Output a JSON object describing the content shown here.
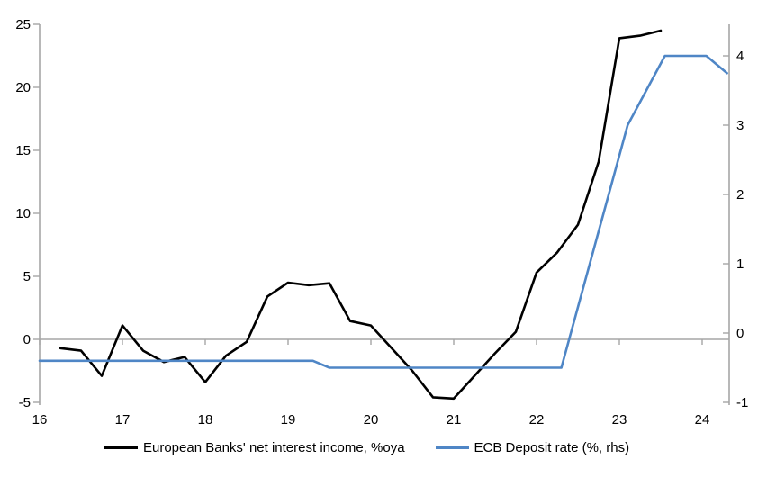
{
  "chart_data": {
    "type": "line",
    "title": "",
    "xlabel": "",
    "ylabel_left": "",
    "ylabel_right": "",
    "grid": "zero-line-only",
    "legend_position": "bottom",
    "x_axis": {
      "tick_values": [
        16,
        17,
        18,
        19,
        20,
        21,
        22,
        23,
        24
      ],
      "tick_labels": [
        "16",
        "17",
        "18",
        "19",
        "20",
        "21",
        "22",
        "23",
        "24"
      ],
      "range": [
        16,
        24.35
      ]
    },
    "left_axis": {
      "tick_values": [
        25,
        20,
        15,
        10,
        5,
        0,
        -5
      ],
      "tick_labels": [
        "25",
        "20",
        "15",
        "10",
        "5",
        "0",
        "-5"
      ],
      "range": [
        -5.2,
        25
      ]
    },
    "right_axis": {
      "tick_values": [
        4,
        3,
        2,
        1,
        0,
        -1
      ],
      "tick_labels": [
        "4",
        "3",
        "2",
        "1",
        "0",
        "-1"
      ],
      "range": [
        -1.04,
        4.45
      ]
    },
    "axis_color": "#A6A6A6",
    "text_color": "#000000",
    "series": [
      {
        "name": "European Banks' net interest income, %oya",
        "axis": "left",
        "color": "#000000",
        "x": [
          16.25,
          16.5,
          16.75,
          17.0,
          17.25,
          17.5,
          17.75,
          18.0,
          18.25,
          18.5,
          18.75,
          19.0,
          19.25,
          19.5,
          19.75,
          20.0,
          20.25,
          20.5,
          20.75,
          21.0,
          21.25,
          21.5,
          21.75,
          22.0,
          22.25,
          22.5,
          22.75,
          23.0,
          23.25,
          23.5
        ],
        "y": [
          -0.7,
          -0.9,
          -2.9,
          1.1,
          -0.9,
          -1.8,
          -1.4,
          -3.4,
          -1.3,
          -0.2,
          3.4,
          4.5,
          4.3,
          4.45,
          1.45,
          1.1,
          -0.7,
          -2.5,
          -4.6,
          -4.7,
          -2.9,
          -1.1,
          0.6,
          5.3,
          6.9,
          9.1,
          14.1,
          23.9,
          24.1,
          24.5
        ]
      },
      {
        "name": "ECB Deposit rate (%, rhs)",
        "axis": "right",
        "color": "#4F86C6",
        "x": [
          16.0,
          19.3,
          19.5,
          22.3,
          23.1,
          23.55,
          24.05,
          24.3
        ],
        "y": [
          -0.4,
          -0.4,
          -0.5,
          -0.5,
          3.0,
          4.0,
          4.0,
          3.75
        ]
      }
    ]
  }
}
